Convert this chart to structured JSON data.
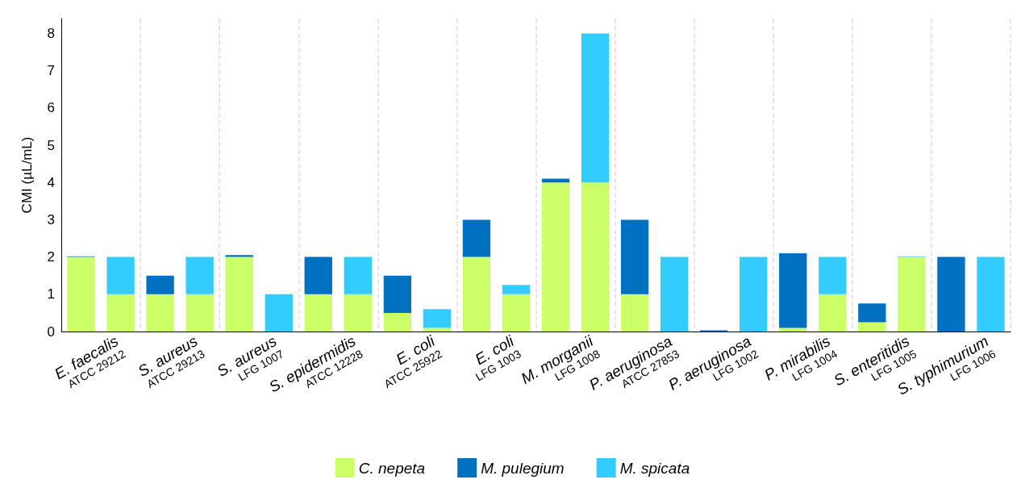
{
  "chart_data": {
    "type": "bar",
    "stacked": true,
    "ylabel": "CMI (µL/mL)",
    "ylim": [
      0,
      8.4
    ],
    "yticks": [
      0,
      1,
      2,
      3,
      4,
      5,
      6,
      7,
      8
    ],
    "grid": "x",
    "legend": "bottom",
    "categories": [
      null,
      "E. faecalis\nATCC 29212",
      null,
      "S. aureus\nATCC 29213",
      null,
      "S. aureus\nLFG 1007",
      null,
      "S. epidermidis\nATCC 12228",
      null,
      "E. coli\nATCC 25922",
      null,
      "E. coli\nLFG 1003",
      null,
      "M. morganii\nLFG 1008",
      null,
      "P. aeruginosa\nATCC 27853",
      null,
      "P. aeruginosa\nLFG 1002",
      null,
      "P. mirabilis\nLFG 1004",
      null,
      "S. enteritidis\nLFG 1005",
      null,
      "S. typhimurium\nLFG 1006"
    ],
    "series": [
      {
        "name": "C. nepeta",
        "color": "#ccff66",
        "values": [
          2,
          1,
          1,
          1,
          2,
          null,
          1,
          1,
          0.5,
          0.1,
          2,
          1,
          4,
          4,
          1,
          null,
          null,
          null,
          0.1,
          1,
          0.25,
          2,
          null,
          null
        ]
      },
      {
        "name": "M. pulegium",
        "color": "#0070c0",
        "values": [
          0.02,
          null,
          0.5,
          null,
          0.05,
          null,
          1,
          null,
          1,
          null,
          1,
          null,
          0.1,
          null,
          2,
          null,
          0.03,
          null,
          2,
          null,
          0.5,
          null,
          2,
          null
        ]
      },
      {
        "name": "M. spicata",
        "color": "#33ccff",
        "values": [
          null,
          1,
          null,
          1,
          null,
          1,
          null,
          1,
          null,
          0.5,
          null,
          0.25,
          null,
          4,
          null,
          2,
          null,
          2,
          null,
          1,
          null,
          0.02,
          null,
          2
        ]
      }
    ]
  }
}
